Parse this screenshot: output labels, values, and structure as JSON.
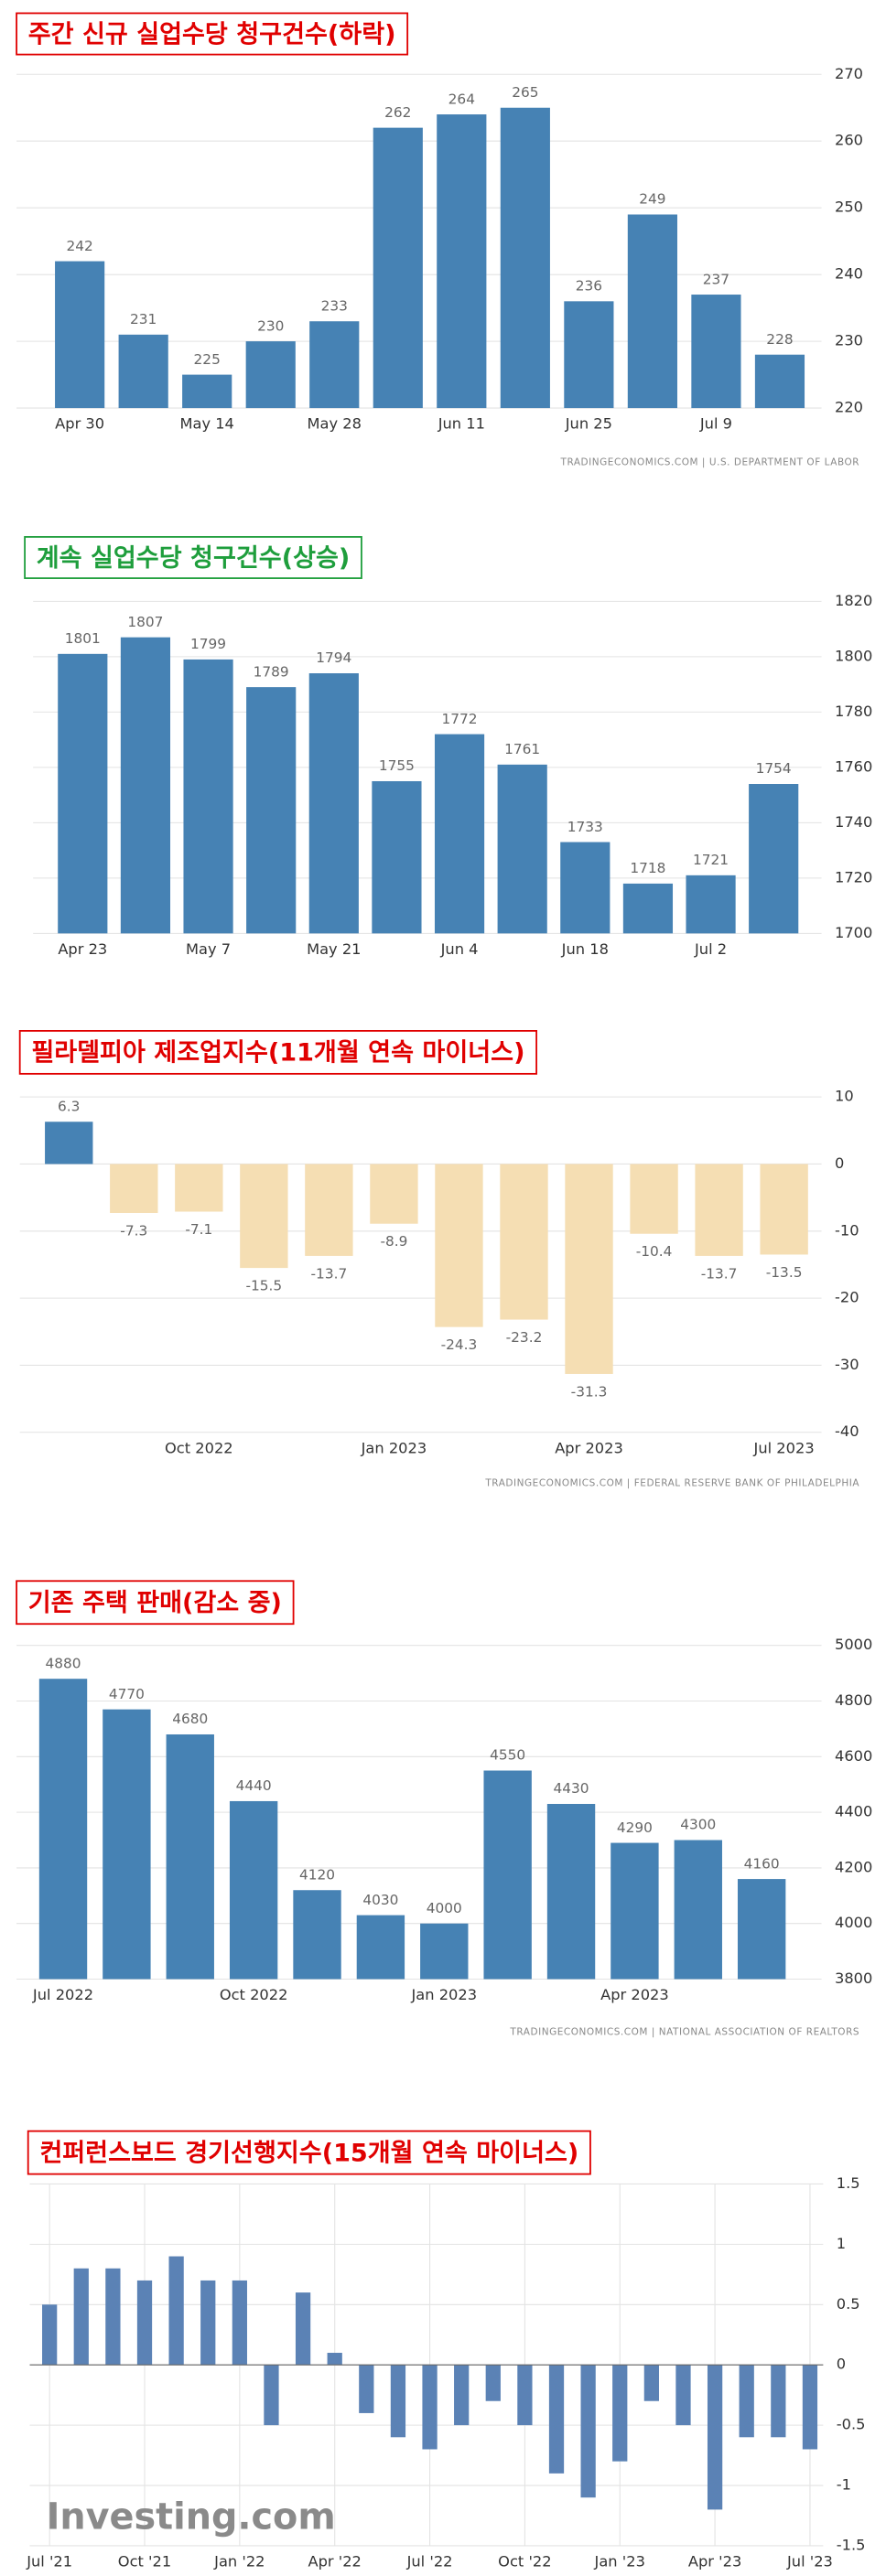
{
  "chart_data": [
    {
      "type": "bar",
      "title": "주간 신규 실업수당 청구건수(하락)",
      "categories": [
        "Apr 30",
        null,
        "May 14",
        null,
        "May 28",
        null,
        "Jun 11",
        null,
        "Jun 25",
        null,
        "Jul 9",
        null
      ],
      "values": [
        242,
        231,
        225,
        230,
        233,
        262,
        264,
        265,
        236,
        249,
        237,
        228
      ],
      "color": "#4682b4",
      "ylim": [
        220,
        270
      ],
      "yticks": [
        220,
        230,
        240,
        250,
        260,
        270
      ],
      "grid": true,
      "data_labels": true,
      "source": "TRADINGECONOMICS.COM | U.S. DEPARTMENT OF LABOR"
    },
    {
      "type": "bar",
      "title": "계속 실업수당 청구건수(상승)",
      "categories": [
        "Apr 23",
        null,
        "May 7",
        null,
        "May 21",
        null,
        "Jun 4",
        null,
        "Jun 18",
        null,
        "Jul 2",
        null
      ],
      "values": [
        1801,
        1807,
        1799,
        1789,
        1794,
        1755,
        1772,
        1761,
        1733,
        1718,
        1721,
        1754
      ],
      "color": "#4682b4",
      "ylim": [
        1700,
        1820
      ],
      "yticks": [
        1700,
        1720,
        1740,
        1760,
        1780,
        1800,
        1820
      ],
      "grid": true,
      "data_labels": true
    },
    {
      "type": "bar",
      "title": "필라델피아 제조업지수(11개월 연속 마이너스)",
      "categories": [
        null,
        null,
        "Oct 2022",
        null,
        null,
        "Jan 2023",
        null,
        null,
        "Apr 2023",
        null,
        null,
        "Jul 2023"
      ],
      "values": [
        6.3,
        -7.3,
        -7.1,
        -15.5,
        -13.7,
        -8.9,
        -24.3,
        -23.2,
        -31.3,
        -10.4,
        -13.7,
        -13.5
      ],
      "colors": [
        "#4682b4",
        "#f5deb3",
        "#f5deb3",
        "#f5deb3",
        "#f5deb3",
        "#f5deb3",
        "#f5deb3",
        "#f5deb3",
        "#f5deb3",
        "#f5deb3",
        "#f5deb3",
        "#f5deb3"
      ],
      "ylim": [
        -40,
        10
      ],
      "yticks": [
        -40,
        -30,
        -20,
        -10,
        0,
        10
      ],
      "grid": true,
      "data_labels": true,
      "source": "TRADINGECONOMICS.COM | FEDERAL RESERVE BANK OF PHILADELPHIA"
    },
    {
      "type": "bar",
      "title": "기존 주택 판매(감소 중)",
      "categories": [
        "Jul 2022",
        null,
        null,
        "Oct 2022",
        null,
        null,
        "Jan 2023",
        null,
        null,
        "Apr 2023",
        null,
        null
      ],
      "values": [
        4880,
        4770,
        4680,
        4440,
        4120,
        4030,
        4000,
        4550,
        4430,
        4290,
        4300,
        4160
      ],
      "color": "#4682b4",
      "ylim": [
        3800,
        5000
      ],
      "yticks": [
        3800,
        4000,
        4200,
        4400,
        4600,
        4800,
        5000
      ],
      "grid": true,
      "data_labels": true,
      "source": "TRADINGECONOMICS.COM | NATIONAL ASSOCIATION OF REALTORS"
    },
    {
      "type": "bar",
      "title": "컨퍼런스보드 경기선행지수(15개월 연속 마이너스)",
      "categories": [
        "Jul '21",
        null,
        null,
        "Oct '21",
        null,
        null,
        "Jan '22",
        null,
        null,
        "Apr '22",
        null,
        null,
        "Jul '22",
        null,
        null,
        "Oct '22",
        null,
        null,
        "Jan '23",
        null,
        null,
        "Apr '23",
        null,
        null,
        "Jul '23"
      ],
      "values": [
        0.5,
        0.8,
        0.8,
        0.7,
        0.9,
        0.7,
        0.7,
        -0.5,
        0.6,
        0.1,
        -0.4,
        -0.6,
        -0.7,
        -0.5,
        -0.3,
        -0.5,
        -0.9,
        -1.1,
        -0.8,
        -0.3,
        -0.5,
        -1.2,
        -0.6,
        -0.6,
        -0.7
      ],
      "color": "#5b82b5",
      "ylim": [
        -1.5,
        1.5
      ],
      "yticks": [
        -1.5,
        -1,
        -0.5,
        0,
        0.5,
        1,
        1.5
      ],
      "grid": true,
      "data_labels": false,
      "watermark": "Investing.com"
    }
  ]
}
